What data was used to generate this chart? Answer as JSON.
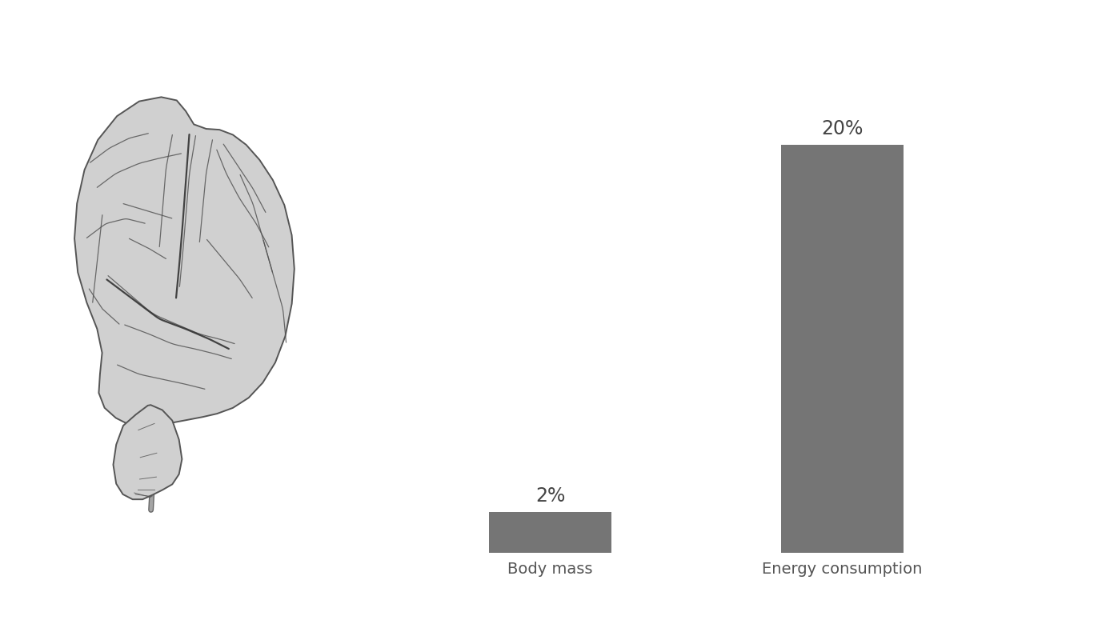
{
  "categories": [
    "Body mass",
    "Energy consumption"
  ],
  "values": [
    2,
    20
  ],
  "labels": [
    "2%",
    "20%"
  ],
  "bar_color": "#757575",
  "background_color": "#ffffff",
  "label_fontsize": 17,
  "tick_fontsize": 14,
  "bar_width": 0.42,
  "ylim": [
    0,
    24
  ],
  "figsize": [
    13.92,
    7.85
  ],
  "dpi": 100,
  "brain_fill": "#d0d0d0",
  "brain_edge": "#555555",
  "sulci_color": "#555555"
}
